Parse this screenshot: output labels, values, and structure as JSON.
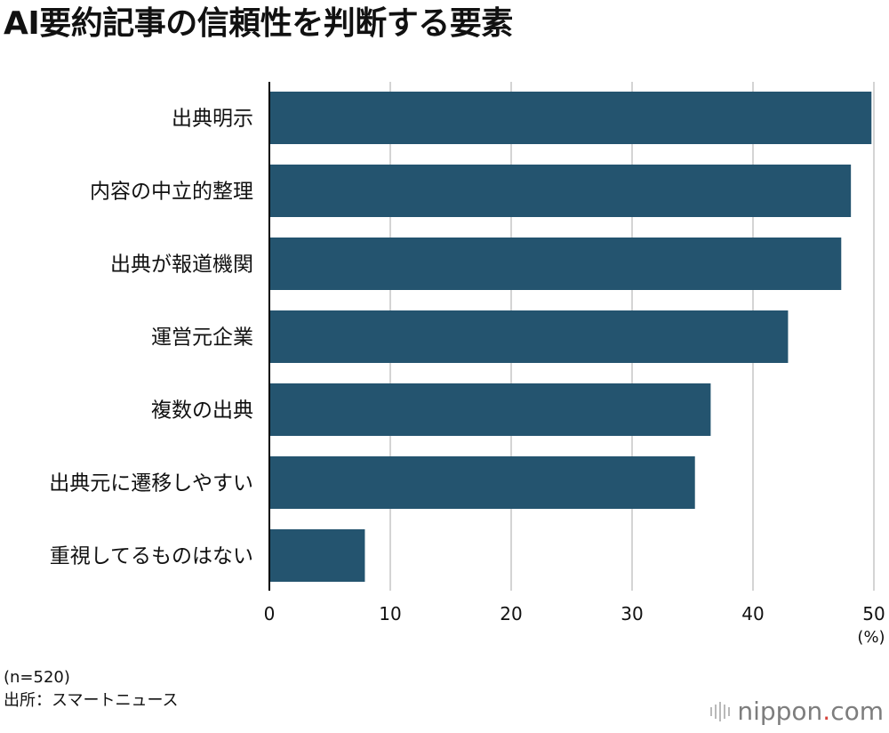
{
  "chart_data": {
    "type": "bar",
    "orientation": "horizontal",
    "title": "AI要約記事の信頼性を判断する要素",
    "categories": [
      "出典明示",
      "内容の中立的整理",
      "出典が報道機関",
      "運営元企業",
      "複数の出典",
      "出典元に遷移しやすい",
      "重視してるものはない"
    ],
    "values": [
      49.8,
      48.1,
      47.3,
      42.9,
      36.5,
      35.2,
      7.9
    ],
    "xlim": [
      0,
      50
    ],
    "xticks": [
      0,
      10,
      20,
      30,
      40,
      50
    ],
    "xunit": "(%)",
    "grid": true,
    "bar_color": "#24546f"
  },
  "footer": {
    "sample": "(n=520)",
    "source": "出所：スマートニュース"
  },
  "logo": {
    "name": "nippon",
    "dot": ".",
    "suffix": "com"
  }
}
